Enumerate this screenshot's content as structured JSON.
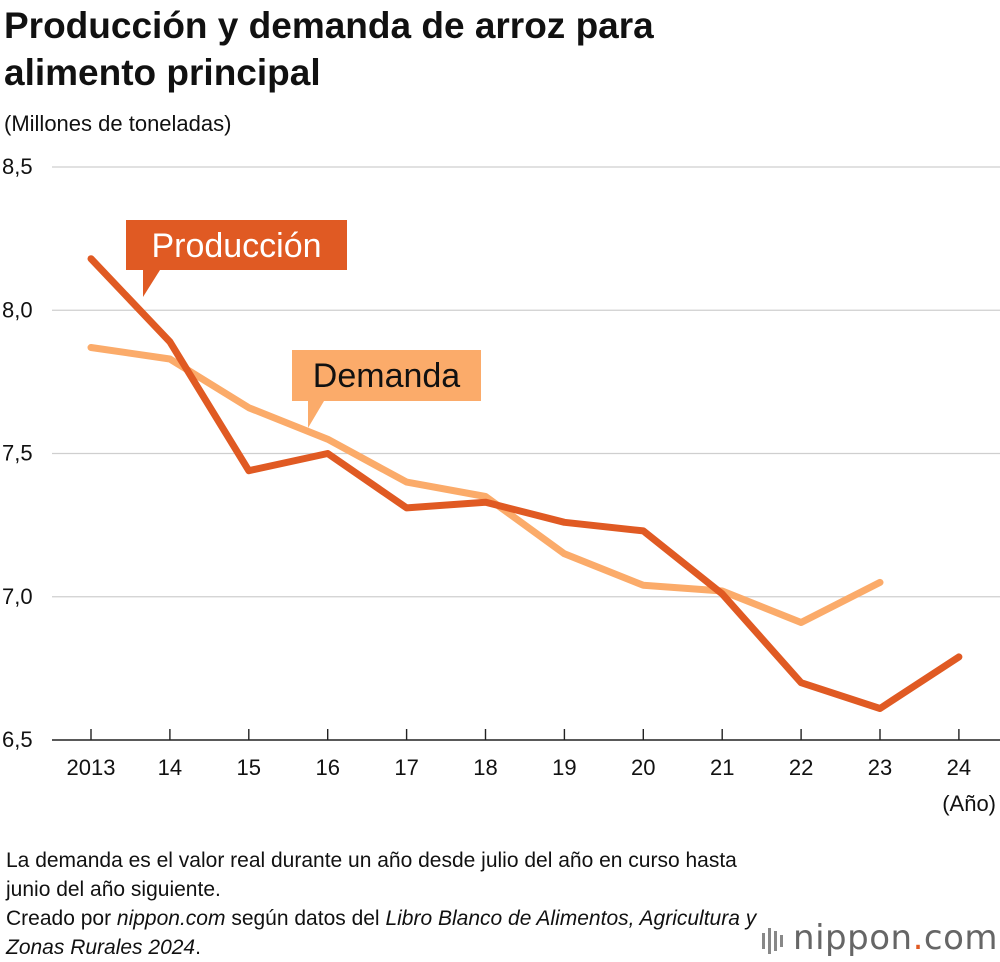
{
  "title": "Producción y demanda de arroz para alimento principal",
  "unit_label": "(Millones de toneladas)",
  "x_unit": "(Año)",
  "chart_data": {
    "type": "line",
    "title": "Producción y demanda de arroz para alimento principal",
    "ylabel": "(Millones de toneladas)",
    "xlabel": "(Año)",
    "ylim": [
      6.5,
      8.5
    ],
    "yticks": [
      "6,5",
      "7,0",
      "7,5",
      "8,0",
      "8,5"
    ],
    "ytick_values": [
      6.5,
      7.0,
      7.5,
      8.0,
      8.5
    ],
    "categories": [
      "2013",
      "14",
      "15",
      "16",
      "17",
      "18",
      "19",
      "20",
      "21",
      "22",
      "23",
      "24"
    ],
    "grid": true,
    "series": [
      {
        "name": "Producción",
        "color": "#e05a23",
        "values": [
          8.18,
          7.89,
          7.44,
          7.5,
          7.31,
          7.33,
          7.26,
          7.23,
          7.01,
          6.7,
          6.61,
          6.79
        ]
      },
      {
        "name": "Demanda",
        "color": "#fbab6a",
        "values": [
          7.87,
          7.83,
          7.66,
          7.55,
          7.4,
          7.35,
          7.15,
          7.04,
          7.02,
          6.91,
          7.05,
          null
        ]
      }
    ]
  },
  "notes": {
    "line1": "La demanda es el valor real durante un año desde julio del año en curso hasta junio del año siguiente.",
    "line2_prefix": "Creado por ",
    "line2_source": "nippon.com",
    "line2_middle": " según datos del ",
    "line2_book": "Libro Blanco de Alimentos, Agricultura y Zonas Rurales 2024",
    "line2_suffix": "."
  },
  "brand": {
    "name_main": "nippon",
    "name_dot": ".",
    "name_tld": "com",
    "icon": "nippon-logo-icon"
  }
}
